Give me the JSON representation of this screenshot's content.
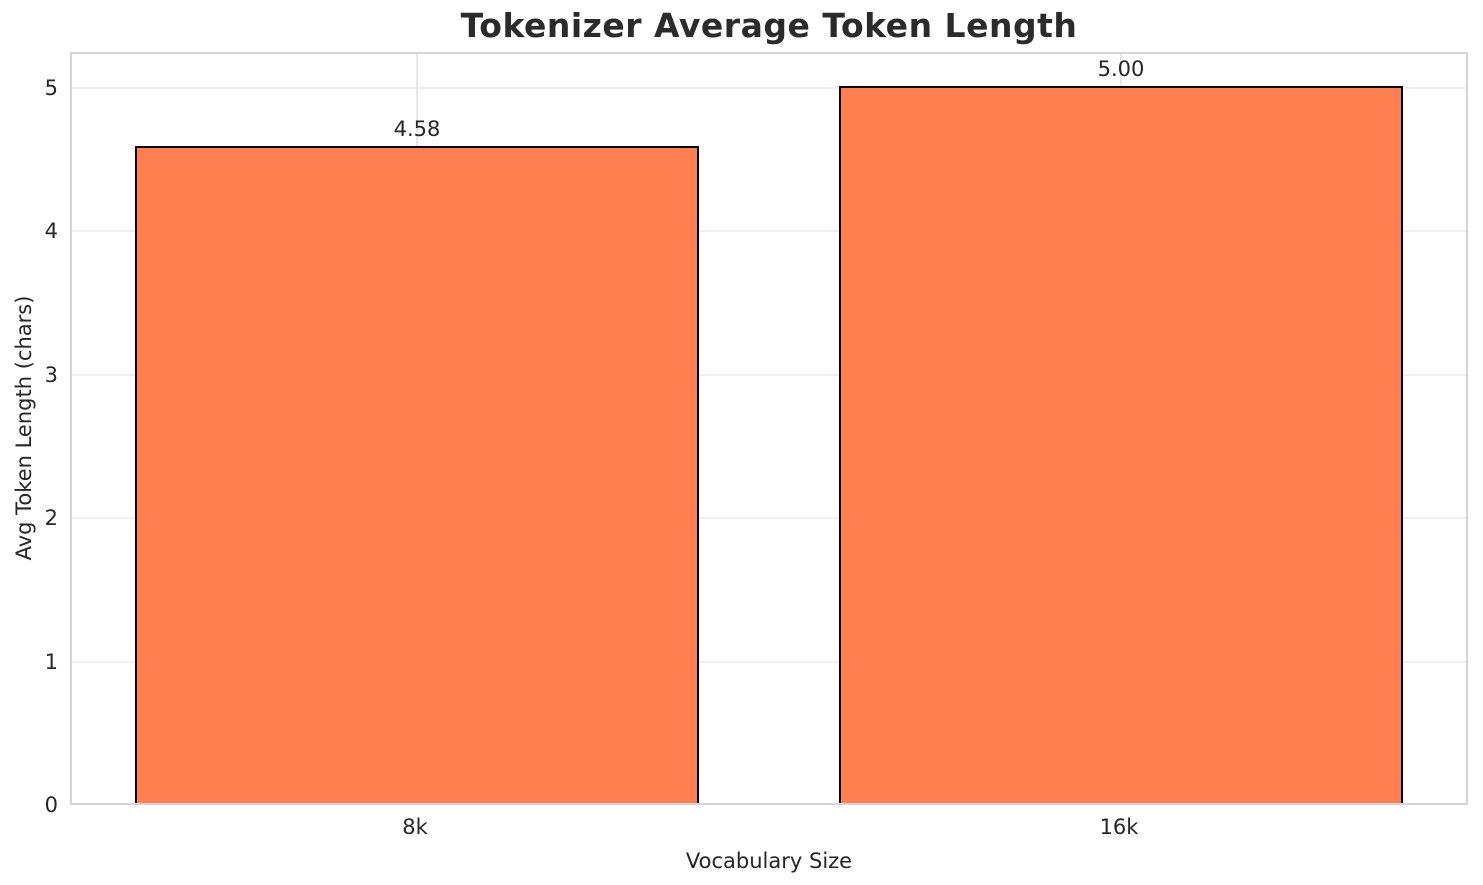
{
  "chart_data": {
    "type": "bar",
    "title": "Tokenizer Average Token Length",
    "xlabel": "Vocabulary Size",
    "ylabel": "Avg Token Length (chars)",
    "categories": [
      "8k",
      "16k"
    ],
    "values": [
      4.58,
      5.0
    ],
    "value_labels": [
      "4.58",
      "5.00"
    ],
    "yticks": [
      0,
      1,
      2,
      3,
      4,
      5
    ],
    "ytick_labels": [
      "0",
      "1",
      "2",
      "3",
      "4",
      "5"
    ],
    "ylim": [
      0,
      5.25
    ],
    "grid": "both",
    "legend": "none",
    "bar_color": "#FF7F50",
    "bar_edge_color": "#000000",
    "text_color": "#262626",
    "grid_color": "#efefef",
    "spine_color": "#d5d5d5"
  }
}
